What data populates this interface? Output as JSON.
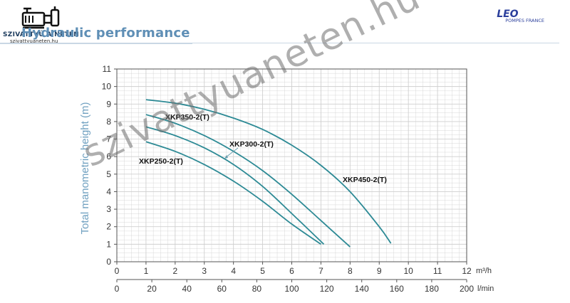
{
  "header": {
    "title": "Hydraulic performance",
    "site_name": "SZIVATTYÚ A NETEN",
    "site_url": "szivattyuaneten.hu",
    "brand_name": "LEO",
    "brand_sub": "POMPES FRANCE",
    "site_icon": "pump-icon"
  },
  "watermark": "szivattyuaneten.hu",
  "colors": {
    "curve": "#2d8a95",
    "grid": "#cfcfcf",
    "axis": "#333333",
    "ylabel": "#6fa0c0"
  },
  "chart_data": {
    "type": "line",
    "title": "",
    "ylabel": "Total manometric height (m)",
    "xlabel_top": "m³/h",
    "xlabel_bottom": "l/min",
    "xlim": [
      0,
      12
    ],
    "ylim": [
      0,
      11
    ],
    "x_ticks": [
      "0",
      "1",
      "2",
      "3",
      "4",
      "5",
      "6",
      "7",
      "8",
      "9",
      "10",
      "11",
      "12"
    ],
    "x2_ticks": [
      "0",
      "20",
      "40",
      "60",
      "80",
      "100",
      "120",
      "140",
      "160",
      "180",
      "200"
    ],
    "y_ticks": [
      "0",
      "1",
      "2",
      "3",
      "4",
      "5",
      "6",
      "7",
      "8",
      "9",
      "10",
      "11"
    ],
    "grid": true,
    "series": [
      {
        "name": "XKP250-2(T)",
        "x": [
          1.0,
          2.0,
          3.0,
          4.0,
          5.0,
          6.0,
          7.0
        ],
        "y": [
          6.85,
          6.3,
          5.55,
          4.6,
          3.45,
          2.15,
          1.0
        ]
      },
      {
        "name": "XKP300-2(T)",
        "x": [
          1.0,
          2.0,
          3.0,
          4.0,
          5.0,
          6.0,
          7.1
        ],
        "y": [
          7.7,
          7.2,
          6.5,
          5.55,
          4.3,
          2.75,
          1.0
        ]
      },
      {
        "name": "XKP350-2(T)",
        "x": [
          1.0,
          2.0,
          3.0,
          4.0,
          5.0,
          6.0,
          7.0,
          8.0
        ],
        "y": [
          8.4,
          7.9,
          7.2,
          6.3,
          5.2,
          3.85,
          2.35,
          0.85
        ]
      },
      {
        "name": "XKP450-2(T)",
        "x": [
          1.0,
          2.0,
          3.0,
          4.0,
          5.0,
          6.0,
          7.0,
          8.0,
          9.0,
          9.4
        ],
        "y": [
          9.25,
          9.05,
          8.7,
          8.2,
          7.55,
          6.65,
          5.5,
          4.0,
          2.0,
          1.05
        ]
      }
    ],
    "labels": [
      {
        "text": "XKP350-2(T)",
        "series": "XKP350-2(T)"
      },
      {
        "text": "XKP300-2(T)",
        "series": "XKP300-2(T)"
      },
      {
        "text": "XKP250-2(T)",
        "series": "XKP250-2(T)"
      },
      {
        "text": "XKP450-2(T)",
        "series": "XKP450-2(T)"
      }
    ]
  }
}
